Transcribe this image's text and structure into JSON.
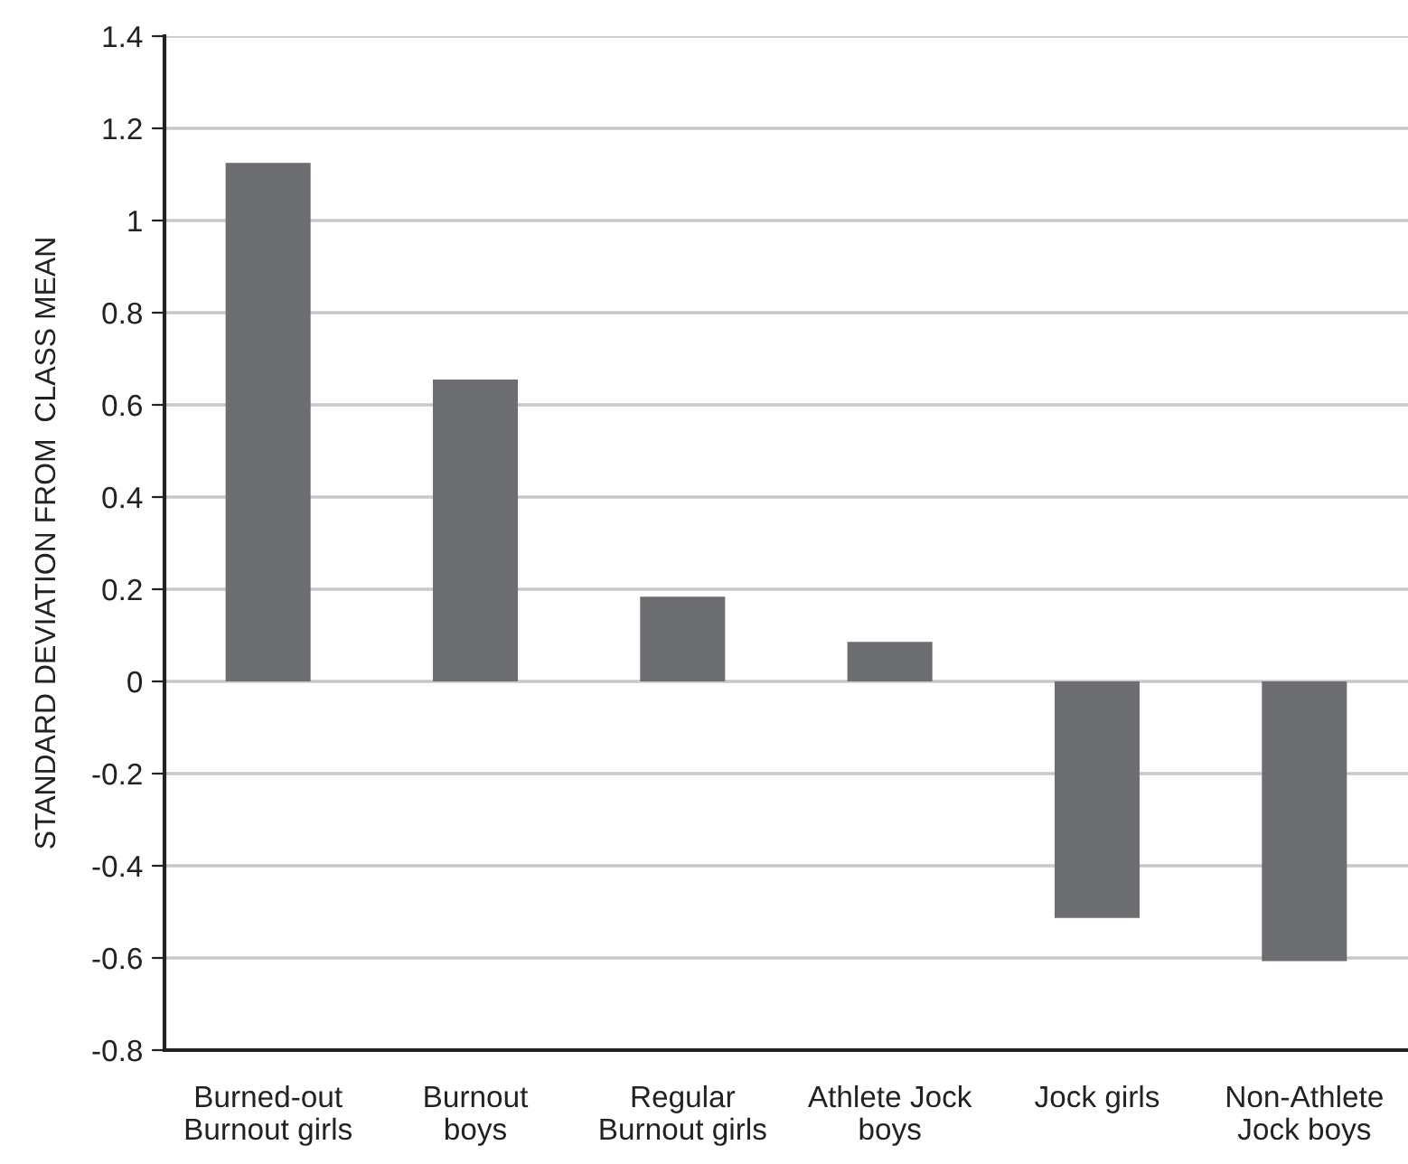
{
  "chart_data": {
    "type": "bar",
    "ylabel": "STANDARD DEVIATION FROM  CLASS MEAN",
    "categories": [
      "Burned-out\nBurnout girls",
      "Burnout\nboys",
      "Regular\nBurnout girls",
      "Athlete Jock\nboys",
      "Jock girls",
      "Non-Athlete\nJock boys"
    ],
    "values": [
      1.125,
      0.655,
      0.184,
      0.086,
      -0.513,
      -0.607
    ],
    "color": "#6d6e71",
    "ylim": [
      -0.8,
      1.4
    ],
    "yticks": [
      -0.8,
      -0.6,
      -0.4,
      -0.2,
      0,
      0.2,
      0.4,
      0.6,
      0.8,
      1,
      1.2,
      1.4
    ],
    "grid": "y"
  }
}
